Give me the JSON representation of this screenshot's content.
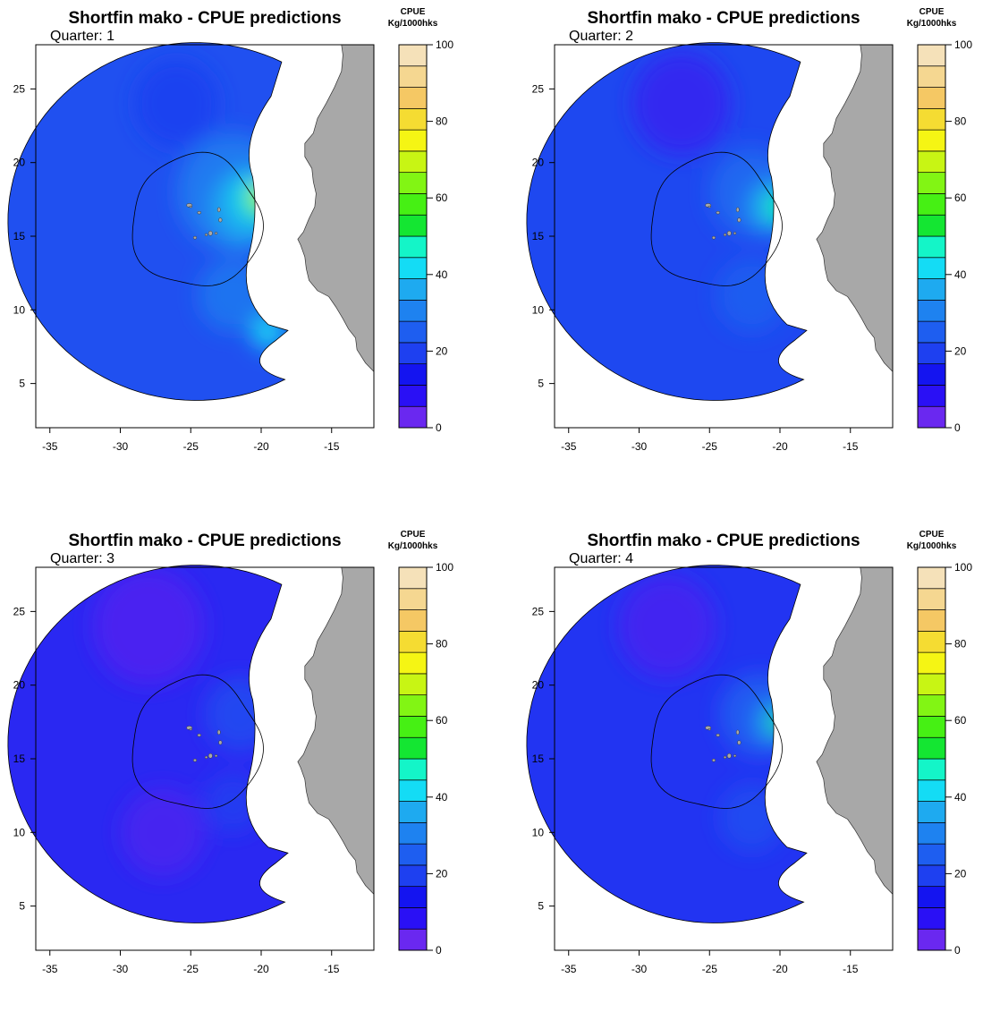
{
  "figure": {
    "colorbar": {
      "title_line1": "CPUE",
      "title_line2": "Kg/1000hks",
      "ticks": [
        "0",
        "20",
        "40",
        "60",
        "80",
        "100"
      ],
      "colors": [
        "#6a28f0",
        "#2a10f5",
        "#1414f0",
        "#1e40f0",
        "#1e5ef0",
        "#1e82f0",
        "#1eaaf0",
        "#14dcf5",
        "#14f5c8",
        "#14e632",
        "#46f014",
        "#82f514",
        "#c8f514",
        "#f5f514",
        "#f5dc32",
        "#f5c864",
        "#f5d791",
        "#f5e1b9"
      ],
      "island_color": "#a8a8a8",
      "land_color": "#a8a8a8"
    },
    "axes": {
      "x_ticks": [
        "-35",
        "-30",
        "-25",
        "-20",
        "-15"
      ],
      "y_ticks": [
        "5",
        "10",
        "15",
        "20",
        "25"
      ],
      "xlim": [
        -36,
        -12
      ],
      "ylim": [
        2,
        28
      ]
    }
  },
  "panels": [
    {
      "title": "Shortfin mako - CPUE predictions",
      "subtitle": "Quarter: 1",
      "base": "#2050f0",
      "blobs": [
        {
          "lon": -26,
          "lat": 24,
          "r": 3,
          "color": "#1a3ef0",
          "o": 0.8
        },
        {
          "lon": -22,
          "lat": 18,
          "r": 4,
          "color": "#1e82f0",
          "o": 0.8
        },
        {
          "lon": -21,
          "lat": 17,
          "r": 2.6,
          "color": "#1eaaf0",
          "o": 0.9
        },
        {
          "lon": -20.5,
          "lat": 17.5,
          "r": 1.6,
          "color": "#14dcf5",
          "o": 0.9
        },
        {
          "lon": -20,
          "lat": 17.5,
          "r": 1.1,
          "color": "#46f014",
          "o": 0.9
        },
        {
          "lon": -19.8,
          "lat": 17.8,
          "r": 0.6,
          "color": "#f5f514",
          "o": 0.9
        },
        {
          "lon": -22,
          "lat": 11,
          "r": 2.5,
          "color": "#1e82f0",
          "o": 0.7
        },
        {
          "lon": -19.5,
          "lat": 8.5,
          "r": 1.2,
          "color": "#14dcf5",
          "o": 0.9
        }
      ]
    },
    {
      "title": "Shortfin mako - CPUE predictions",
      "subtitle": "Quarter: 2",
      "base": "#1e48f0",
      "blobs": [
        {
          "lon": -27,
          "lat": 24,
          "r": 3.5,
          "color": "#3a20f0",
          "o": 0.8
        },
        {
          "lon": -22,
          "lat": 18,
          "r": 3,
          "color": "#1e6ef0",
          "o": 0.8
        },
        {
          "lon": -20.5,
          "lat": 17,
          "r": 1.8,
          "color": "#1eaaf0",
          "o": 0.9
        },
        {
          "lon": -20,
          "lat": 17,
          "r": 1.0,
          "color": "#14f5c8",
          "o": 0.9
        },
        {
          "lon": -19.8,
          "lat": 17,
          "r": 0.5,
          "color": "#14e632",
          "o": 0.9
        },
        {
          "lon": -22,
          "lat": 11,
          "r": 2.5,
          "color": "#1e64f0",
          "o": 0.7
        }
      ]
    },
    {
      "title": "Shortfin mako - CPUE predictions",
      "subtitle": "Quarter: 3",
      "base": "#2a28f2",
      "blobs": [
        {
          "lon": -28,
          "lat": 24,
          "r": 4,
          "color": "#5222f0",
          "o": 0.8
        },
        {
          "lon": -27,
          "lat": 10,
          "r": 3,
          "color": "#5222f0",
          "o": 0.7
        },
        {
          "lon": -21.5,
          "lat": 18,
          "r": 2.5,
          "color": "#1e50f0",
          "o": 0.8
        },
        {
          "lon": -22,
          "lat": 12,
          "r": 2,
          "color": "#1e48f0",
          "o": 0.6
        }
      ]
    },
    {
      "title": "Shortfin mako - CPUE predictions",
      "subtitle": "Quarter: 4",
      "base": "#2234f2",
      "blobs": [
        {
          "lon": -28,
          "lat": 24,
          "r": 3.5,
          "color": "#4a22f0",
          "o": 0.8
        },
        {
          "lon": -21.5,
          "lat": 18,
          "r": 2.8,
          "color": "#1e64f0",
          "o": 0.8
        },
        {
          "lon": -20.3,
          "lat": 17.5,
          "r": 1.4,
          "color": "#1eaaf0",
          "o": 0.9
        },
        {
          "lon": -19.9,
          "lat": 17.5,
          "r": 0.7,
          "color": "#14e632",
          "o": 0.9
        },
        {
          "lon": -22,
          "lat": 11,
          "r": 2.3,
          "color": "#1e58f0",
          "o": 0.6
        }
      ]
    }
  ]
}
